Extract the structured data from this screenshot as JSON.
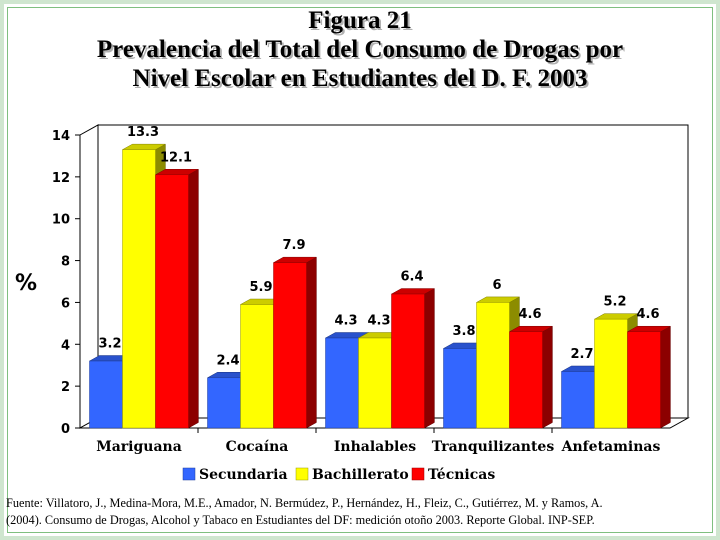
{
  "title": {
    "line1": "Figura 21",
    "line2": "Prevalencia del Total del Consumo de Drogas por",
    "line3": "Nivel Escolar en Estudiantes del D. F. 2003"
  },
  "footnote": {
    "line1": "Fuente: Villatoro, J., Medina-Mora, M.E., Amador, N. Bermúdez, P., Hernández, H., Fleiz, C., Gutiérrez, M. y Ramos, A.",
    "line2": "(2004). Consumo de Drogas, Alcohol y Tabaco en Estudiantes del DF: medición otoño 2003. Reporte Global. INP-SEP."
  },
  "chart_data": {
    "type": "bar",
    "ylabel": "%",
    "xlabel": "",
    "ylim": [
      0,
      14
    ],
    "yticks": [
      0,
      2,
      4,
      6,
      8,
      10,
      12,
      14
    ],
    "grid": false,
    "legend_position": "bottom",
    "categories": [
      "Mariguana",
      "Cocaína",
      "Inhalables",
      "Tranquilizantes",
      "Anfetaminas"
    ],
    "series": [
      {
        "name": "Secundaria",
        "color": "#3366ff",
        "values": [
          3.2,
          2.4,
          4.3,
          3.8,
          2.7
        ],
        "labels": [
          "3.2",
          "2.4",
          "4.3",
          "3.8",
          "2.7"
        ]
      },
      {
        "name": "Bachillerato",
        "color": "#ffff00",
        "values": [
          13.3,
          5.9,
          4.3,
          6,
          5.2
        ],
        "labels": [
          "13.3",
          "5.9",
          "4.3",
          "6",
          "5.2"
        ]
      },
      {
        "name": "Técnicas",
        "color": "#ff0000",
        "values": [
          12.1,
          7.9,
          6.4,
          4.6,
          4.6
        ],
        "labels": [
          "12.1",
          "7.9",
          "6.4",
          "4.6",
          "4.6"
        ]
      }
    ]
  }
}
